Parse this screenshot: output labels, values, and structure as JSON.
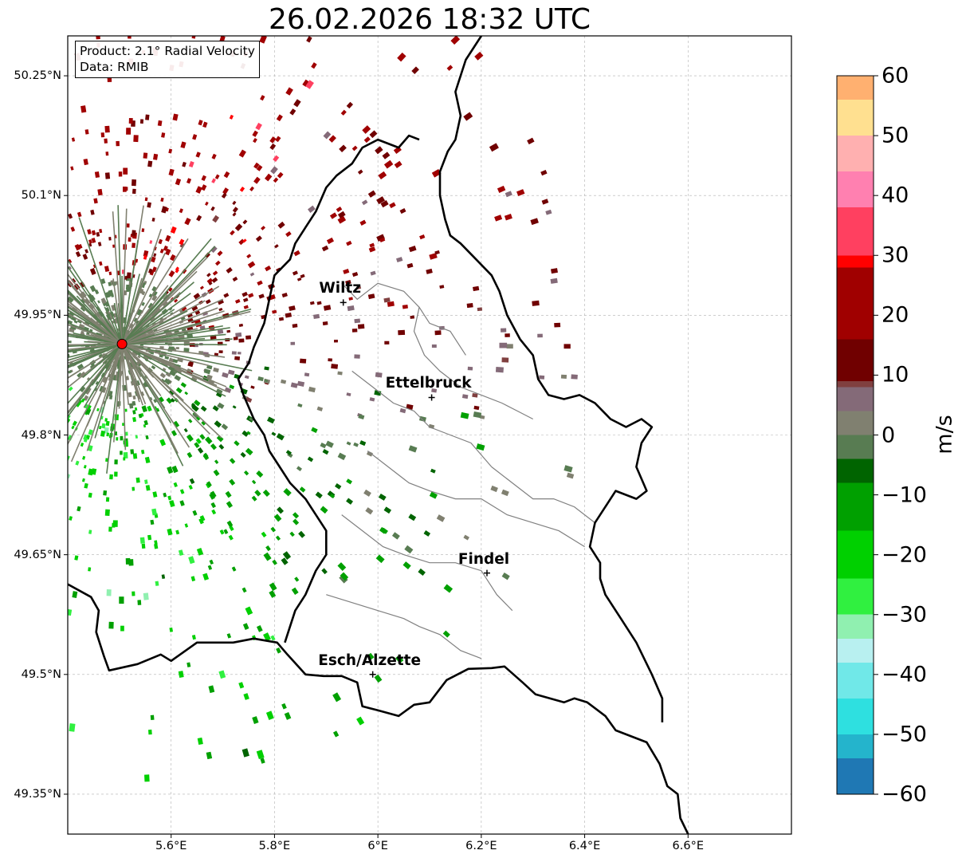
{
  "title": "26.02.2026 18:32 UTC",
  "info": {
    "product": "Product: 2.1° Radial Velocity",
    "source": "Data: RMIB"
  },
  "map": {
    "lon_range": [
      5.4,
      6.8
    ],
    "lat_range": [
      49.3,
      50.3
    ],
    "lon_ticks": [
      {
        "value": 5.6,
        "label": "5.6°E"
      },
      {
        "value": 5.8,
        "label": "5.8°E"
      },
      {
        "value": 6.0,
        "label": "6°E"
      },
      {
        "value": 6.2,
        "label": "6.2°E"
      },
      {
        "value": 6.4,
        "label": "6.4°E"
      },
      {
        "value": 6.6,
        "label": "6.6°E"
      }
    ],
    "lat_ticks": [
      {
        "value": 50.25,
        "label": "50.25°N"
      },
      {
        "value": 50.1,
        "label": "50.1°N"
      },
      {
        "value": 49.95,
        "label": "49.95°N"
      },
      {
        "value": 49.8,
        "label": "49.8°N"
      },
      {
        "value": 49.65,
        "label": "49.65°N"
      },
      {
        "value": 49.5,
        "label": "49.5°N"
      },
      {
        "value": 49.35,
        "label": "49.35°N"
      }
    ],
    "radar_site": {
      "lon": 5.505,
      "lat": 49.914
    },
    "cities": [
      {
        "name": "Wiltz",
        "lon": 5.933,
        "lat": 49.966
      },
      {
        "name": "Ettelbruck",
        "lon": 6.104,
        "lat": 49.847
      },
      {
        "name": "Findel",
        "lon": 6.211,
        "lat": 49.627
      },
      {
        "name": "Esch/Alzette",
        "lon": 5.99,
        "lat": 49.5
      }
    ],
    "border": [
      [
        5.4,
        49.613
      ],
      [
        5.445,
        49.597
      ],
      [
        5.46,
        49.58
      ],
      [
        5.455,
        49.553
      ],
      [
        5.47,
        49.523
      ],
      [
        5.48,
        49.505
      ],
      [
        5.535,
        49.513
      ],
      [
        5.58,
        49.525
      ],
      [
        5.6,
        49.517
      ],
      [
        5.65,
        49.54
      ],
      [
        5.72,
        49.54
      ],
      [
        5.76,
        49.545
      ],
      [
        5.805,
        49.54
      ],
      [
        5.825,
        49.525
      ],
      [
        5.86,
        49.5
      ],
      [
        5.895,
        49.498
      ],
      [
        5.93,
        49.498
      ],
      [
        5.96,
        49.49
      ],
      [
        5.97,
        49.46
      ],
      [
        6.0,
        49.455
      ],
      [
        6.04,
        49.448
      ],
      [
        6.07,
        49.462
      ],
      [
        6.1,
        49.465
      ],
      [
        6.133,
        49.493
      ],
      [
        6.175,
        49.507
      ],
      [
        6.22,
        49.508
      ],
      [
        6.245,
        49.51
      ],
      [
        6.28,
        49.49
      ],
      [
        6.305,
        49.475
      ],
      [
        6.36,
        49.465
      ],
      [
        6.38,
        49.47
      ],
      [
        6.405,
        49.465
      ],
      [
        6.44,
        49.448
      ],
      [
        6.46,
        49.43
      ],
      [
        6.52,
        49.415
      ],
      [
        6.545,
        49.388
      ],
      [
        6.56,
        49.36
      ],
      [
        6.58,
        49.35
      ],
      [
        6.585,
        49.32
      ],
      [
        6.6,
        49.3
      ]
    ],
    "border_east": [
      [
        6.55,
        49.44
      ],
      [
        6.55,
        49.47
      ],
      [
        6.53,
        49.5
      ],
      [
        6.5,
        49.54
      ],
      [
        6.47,
        49.57
      ],
      [
        6.44,
        49.6
      ],
      [
        6.43,
        49.62
      ],
      [
        6.43,
        49.64
      ],
      [
        6.41,
        49.66
      ],
      [
        6.42,
        49.69
      ],
      [
        6.44,
        49.71
      ],
      [
        6.46,
        49.73
      ],
      [
        6.5,
        49.72
      ],
      [
        6.52,
        49.73
      ],
      [
        6.5,
        49.76
      ],
      [
        6.51,
        49.79
      ],
      [
        6.53,
        49.81
      ],
      [
        6.51,
        49.82
      ],
      [
        6.48,
        49.81
      ],
      [
        6.45,
        49.82
      ],
      [
        6.42,
        49.84
      ],
      [
        6.39,
        49.85
      ],
      [
        6.36,
        49.845
      ],
      [
        6.33,
        49.85
      ],
      [
        6.31,
        49.87
      ],
      [
        6.3,
        49.9
      ],
      [
        6.275,
        49.92
      ],
      [
        6.25,
        49.95
      ],
      [
        6.235,
        49.98
      ],
      [
        6.22,
        50.0
      ],
      [
        6.19,
        50.02
      ],
      [
        6.16,
        50.04
      ],
      [
        6.14,
        50.05
      ],
      [
        6.13,
        50.07
      ],
      [
        6.12,
        50.1
      ],
      [
        6.12,
        50.13
      ],
      [
        6.135,
        50.155
      ],
      [
        6.15,
        50.17
      ],
      [
        6.16,
        50.2
      ],
      [
        6.15,
        50.23
      ],
      [
        6.16,
        50.25
      ],
      [
        6.17,
        50.27
      ],
      [
        6.19,
        50.29
      ],
      [
        6.2,
        50.3
      ]
    ],
    "border_north": [
      [
        6.08,
        50.17
      ],
      [
        6.06,
        50.175
      ],
      [
        6.04,
        50.16
      ],
      [
        6.0,
        50.17
      ],
      [
        5.97,
        50.16
      ],
      [
        5.95,
        50.14
      ],
      [
        5.92,
        50.125
      ],
      [
        5.9,
        50.11
      ],
      [
        5.88,
        50.08
      ],
      [
        5.86,
        50.06
      ],
      [
        5.84,
        50.04
      ],
      [
        5.83,
        50.02
      ],
      [
        5.8,
        50.0
      ],
      [
        5.79,
        49.97
      ],
      [
        5.78,
        49.94
      ],
      [
        5.76,
        49.91
      ],
      [
        5.75,
        49.89
      ],
      [
        5.73,
        49.87
      ],
      [
        5.74,
        49.85
      ],
      [
        5.76,
        49.82
      ],
      [
        5.78,
        49.8
      ],
      [
        5.79,
        49.78
      ],
      [
        5.81,
        49.76
      ],
      [
        5.83,
        49.74
      ],
      [
        5.86,
        49.72
      ],
      [
        5.88,
        49.7
      ],
      [
        5.9,
        49.68
      ],
      [
        5.9,
        49.65
      ],
      [
        5.88,
        49.63
      ],
      [
        5.86,
        49.6
      ],
      [
        5.84,
        49.58
      ],
      [
        5.83,
        49.56
      ],
      [
        5.82,
        49.54
      ]
    ],
    "cantons": [
      [
        [
          5.93,
          49.99
        ],
        [
          5.96,
          49.97
        ],
        [
          6.0,
          49.99
        ],
        [
          6.05,
          49.98
        ],
        [
          6.08,
          49.96
        ],
        [
          6.1,
          49.94
        ],
        [
          6.14,
          49.93
        ],
        [
          6.17,
          49.9
        ]
      ],
      [
        [
          6.08,
          49.96
        ],
        [
          6.07,
          49.93
        ],
        [
          6.09,
          49.9
        ],
        [
          6.12,
          49.88
        ],
        [
          6.16,
          49.86
        ],
        [
          6.2,
          49.85
        ],
        [
          6.24,
          49.84
        ],
        [
          6.27,
          49.83
        ],
        [
          6.3,
          49.82
        ]
      ],
      [
        [
          5.95,
          49.88
        ],
        [
          5.99,
          49.86
        ],
        [
          6.03,
          49.84
        ],
        [
          6.07,
          49.83
        ],
        [
          6.1,
          49.81
        ],
        [
          6.14,
          49.8
        ],
        [
          6.18,
          49.79
        ],
        [
          6.22,
          49.76
        ]
      ],
      [
        [
          5.98,
          49.78
        ],
        [
          6.02,
          49.76
        ],
        [
          6.06,
          49.74
        ],
        [
          6.1,
          49.73
        ],
        [
          6.15,
          49.72
        ],
        [
          6.2,
          49.72
        ],
        [
          6.25,
          49.7
        ],
        [
          6.3,
          49.69
        ],
        [
          6.35,
          49.68
        ],
        [
          6.4,
          49.66
        ]
      ],
      [
        [
          5.93,
          49.7
        ],
        [
          5.97,
          49.68
        ],
        [
          6.01,
          49.66
        ],
        [
          6.05,
          49.65
        ],
        [
          6.1,
          49.64
        ],
        [
          6.15,
          49.64
        ],
        [
          6.2,
          49.63
        ],
        [
          6.23,
          49.6
        ],
        [
          6.26,
          49.58
        ]
      ],
      [
        [
          5.9,
          49.6
        ],
        [
          5.95,
          49.59
        ],
        [
          6.0,
          49.58
        ],
        [
          6.05,
          49.57
        ],
        [
          6.08,
          49.56
        ],
        [
          6.12,
          49.55
        ],
        [
          6.16,
          49.53
        ],
        [
          6.2,
          49.52
        ]
      ],
      [
        [
          6.22,
          49.76
        ],
        [
          6.26,
          49.74
        ],
        [
          6.3,
          49.72
        ],
        [
          6.34,
          49.72
        ],
        [
          6.38,
          49.71
        ],
        [
          6.42,
          49.69
        ]
      ]
    ]
  },
  "colorbar": {
    "label": "m/s",
    "vmin": -60,
    "vmax": 60,
    "ticks": [
      {
        "value": 60,
        "label": "60"
      },
      {
        "value": 50,
        "label": "50"
      },
      {
        "value": 40,
        "label": "40"
      },
      {
        "value": 30,
        "label": "30"
      },
      {
        "value": 20,
        "label": "20"
      },
      {
        "value": 10,
        "label": "10"
      },
      {
        "value": 0,
        "label": "0"
      },
      {
        "value": -10,
        "label": "−10"
      },
      {
        "value": -20,
        "label": "−20"
      },
      {
        "value": -30,
        "label": "−30"
      },
      {
        "value": -40,
        "label": "−40"
      },
      {
        "value": -50,
        "label": "−50"
      },
      {
        "value": -60,
        "label": "−60"
      }
    ],
    "stops": [
      {
        "value": -60,
        "color": "#1f78b4"
      },
      {
        "value": -54,
        "color": "#24b4cc"
      },
      {
        "value": -50,
        "color": "#2ee0e0"
      },
      {
        "value": -44,
        "color": "#70e8e8"
      },
      {
        "value": -38,
        "color": "#b8f0f0"
      },
      {
        "value": -34,
        "color": "#90f0b0"
      },
      {
        "value": -30,
        "color": "#30f040"
      },
      {
        "value": -24,
        "color": "#00d000"
      },
      {
        "value": -16,
        "color": "#00a000"
      },
      {
        "value": -8,
        "color": "#006400"
      },
      {
        "value": -4,
        "color": "#587c52"
      },
      {
        "value": 0,
        "color": "#808070"
      },
      {
        "value": 4,
        "color": "#846a78"
      },
      {
        "value": 8,
        "color": "#804040"
      },
      {
        "value": 9,
        "color": "#700000"
      },
      {
        "value": 16,
        "color": "#a00000"
      },
      {
        "value": 28,
        "color": "#ff0000"
      },
      {
        "value": 30,
        "color": "#ff4060"
      },
      {
        "value": 38,
        "color": "#ff80b0"
      },
      {
        "value": 44,
        "color": "#ffb0b0"
      },
      {
        "value": 50,
        "color": "#ffe090"
      },
      {
        "value": 56,
        "color": "#ffb070"
      },
      {
        "value": 60,
        "color": "#ff9850"
      }
    ]
  }
}
